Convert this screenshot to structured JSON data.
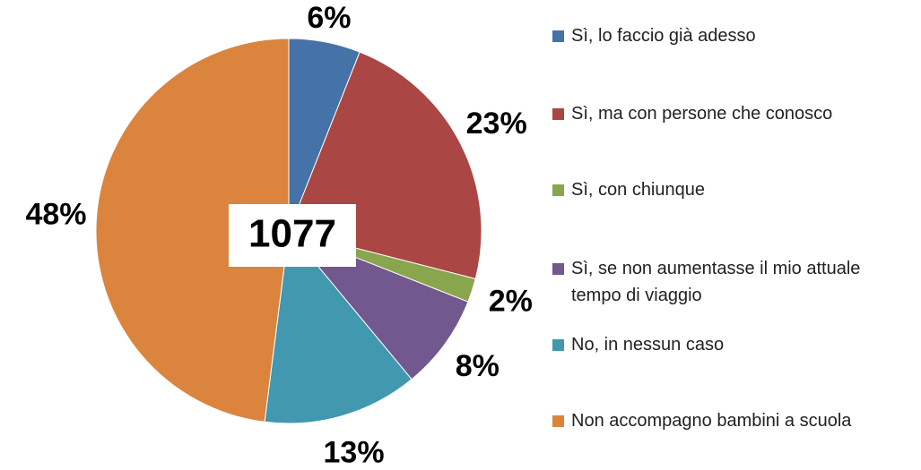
{
  "chart_data": {
    "type": "pie",
    "categories": [
      "Sì, lo faccio già adesso",
      "Sì, ma con persone che conosco",
      "Sì, con chiunque",
      "Sì, se non aumentasse il mio attuale tempo di viaggio",
      "No, in nessun caso",
      "Non accompagno bambini a scuola"
    ],
    "values": [
      6,
      23,
      2,
      8,
      13,
      48
    ],
    "value_labels": [
      "6%",
      "23%",
      "2%",
      "8%",
      "13%",
      "48%"
    ],
    "colors": [
      "#4572a7",
      "#aa4643",
      "#89a54e",
      "#71588f",
      "#4198af",
      "#db843d"
    ],
    "center_label": "1077",
    "legend": "right"
  }
}
